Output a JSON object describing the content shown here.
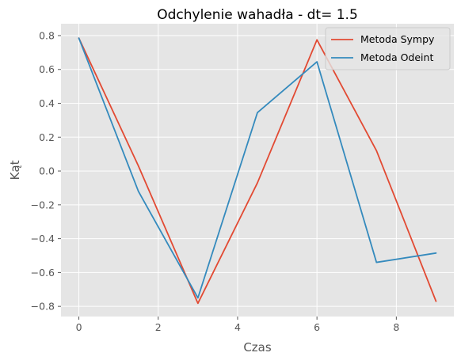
{
  "chart_data": {
    "type": "line",
    "title": "Odchylenie wahadła - dt= 1.5",
    "xlabel": "Czas",
    "ylabel": "Kąt",
    "xlim": [
      -0.45,
      9.45
    ],
    "ylim": [
      -0.86,
      0.87
    ],
    "xticks": [
      0,
      2,
      4,
      6,
      8
    ],
    "yticks": [
      -0.8,
      -0.6,
      -0.4,
      -0.2,
      0.0,
      0.2,
      0.4,
      0.6,
      0.8
    ],
    "ytick_labels": [
      "−0.8",
      "−0.6",
      "−0.4",
      "−0.2",
      "0.0",
      "0.2",
      "0.4",
      "0.6",
      "0.8"
    ],
    "xtick_labels": [
      "0",
      "2",
      "4",
      "6",
      "8"
    ],
    "grid": true,
    "legend_position": "top-right",
    "background": "#e5e5e5",
    "x": [
      0,
      1.5,
      3,
      4.5,
      6,
      7.5,
      9
    ],
    "series": [
      {
        "name": "Metoda Sympy",
        "color": "#e24a33",
        "values": [
          0.785,
          0.03,
          -0.782,
          -0.07,
          0.775,
          0.12,
          -0.77
        ]
      },
      {
        "name": "Metoda Odeint",
        "color": "#348abd",
        "values": [
          0.785,
          -0.12,
          -0.75,
          0.345,
          0.645,
          -0.54,
          -0.485
        ]
      }
    ]
  }
}
